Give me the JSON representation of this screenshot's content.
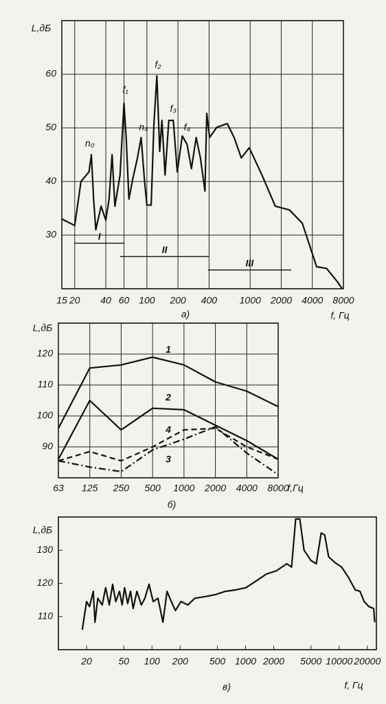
{
  "chart_data": [
    {
      "type": "line",
      "title": "а)",
      "xlabel": "f, Гц",
      "ylabel": "L,дБ",
      "xscale": "log",
      "xlim": [
        15,
        8000
      ],
      "ylim": [
        20,
        70
      ],
      "xticks": [
        15,
        20,
        40,
        60,
        100,
        200,
        400,
        1000,
        2000,
        4000,
        8000
      ],
      "yticks": [
        30,
        40,
        50,
        60
      ],
      "grid": true,
      "series": [
        {
          "color": "#111111",
          "dash": "solid",
          "x": [
            15,
            20,
            23,
            27.5,
            29,
            30.5,
            32,
            36,
            40,
            43,
            46,
            49,
            55,
            60,
            63,
            67,
            73,
            81,
            88,
            95,
            100,
            110,
            117,
            125,
            133,
            140,
            150,
            163,
            180,
            197,
            220,
            245,
            270,
            300,
            330,
            365,
            380,
            405,
            475,
            600,
            700,
            820,
            980,
            1300,
            1750,
            2400,
            3200,
            4400,
            5500,
            7000,
            7800
          ],
          "values": [
            33,
            31.8,
            40,
            41.8,
            45,
            36.7,
            31,
            35.4,
            32.8,
            36.7,
            45,
            35.4,
            41.2,
            54.6,
            48.2,
            36.7,
            40.5,
            44.4,
            48.2,
            40,
            35.6,
            35.6,
            50.8,
            59.7,
            45.6,
            51.4,
            41.2,
            51.4,
            51.4,
            41.8,
            48.5,
            46.9,
            42.4,
            48.2,
            44.4,
            38.2,
            52.7,
            48.2,
            50.1,
            50.8,
            48.2,
            44.4,
            46.3,
            41.2,
            35.4,
            34.7,
            32.2,
            24.1,
            23.8,
            21.3,
            20
          ]
        },
        {
          "name": "I",
          "color": "#111111",
          "dash": "solid",
          "x": [
            20,
            60
          ],
          "values": [
            28.5,
            28.5
          ]
        },
        {
          "name": "II",
          "color": "#111111",
          "dash": "solid",
          "x": [
            55,
            400
          ],
          "values": [
            26,
            26
          ]
        },
        {
          "name": "III",
          "color": "#111111",
          "dash": "solid",
          "x": [
            390,
            2500
          ],
          "values": [
            23.5,
            23.5
          ]
        }
      ],
      "annotations": [
        {
          "text": "n₀",
          "x": 28,
          "y": 47
        },
        {
          "text": "f₁",
          "x": 62,
          "y": 57
        },
        {
          "text": "f₂",
          "x": 128,
          "y": 61.7
        },
        {
          "text": "f₃",
          "x": 180,
          "y": 53.5
        },
        {
          "text": "f₄",
          "x": 245,
          "y": 50
        },
        {
          "text": "n₄",
          "x": 93,
          "y": 50
        }
      ]
    },
    {
      "type": "line",
      "title": "б)",
      "xlabel": "f,Гц",
      "ylabel": "L,дБ",
      "categories": [
        "63",
        "125",
        "250",
        "500",
        "1000",
        "2000",
        "4000",
        "8000"
      ],
      "ylim": [
        80,
        130
      ],
      "yticks": [
        90,
        100,
        110,
        120
      ],
      "grid": true,
      "series": [
        {
          "name": "1",
          "color": "#111111",
          "dash": "solid",
          "values": [
            96,
            115.5,
            116.5,
            119,
            116.5,
            111,
            108,
            103
          ]
        },
        {
          "name": "2",
          "color": "#111111",
          "dash": "solid",
          "values": [
            86,
            105,
            95.5,
            102.5,
            102,
            97,
            92,
            86
          ]
        },
        {
          "name": "3",
          "color": "#111111",
          "dash": "dashdot",
          "values": [
            85.5,
            83.5,
            82,
            89,
            92.5,
            96.5,
            88,
            81
          ]
        },
        {
          "name": "4",
          "color": "#111111",
          "dash": "dashed",
          "values": [
            85.5,
            88.5,
            85.5,
            90,
            95.5,
            96,
            90,
            86
          ]
        }
      ]
    },
    {
      "type": "line",
      "title": "в)",
      "xlabel": "f, Гц",
      "ylabel": "L,дБ",
      "xscale": "log",
      "xlim": [
        10,
        25000
      ],
      "ylim": [
        100,
        140
      ],
      "xticks": [
        20,
        50,
        100,
        200,
        500,
        1000,
        2000,
        5000,
        10000,
        20000
      ],
      "yticks": [
        110,
        120,
        130
      ],
      "grid": false,
      "series": [
        {
          "color": "#111111",
          "dash": "solid",
          "x": [
            18,
            20,
            21.5,
            23.6,
            24.6,
            26.4,
            29.4,
            32,
            35,
            38,
            41,
            45,
            48,
            51,
            55,
            59,
            63,
            69,
            77,
            84,
            93,
            103,
            116,
            131,
            145,
            161,
            178,
            204,
            242,
            287,
            369,
            474,
            610,
            784,
            1008,
            1296,
            1667,
            2143,
            2755,
            3100,
            3430,
            3800,
            4220,
            4990,
            5700,
            6420,
            7000,
            7730,
            8990,
            10630,
            12570,
            14870,
            16700,
            18500,
            20800,
            23400,
            24000
          ],
          "values": [
            106,
            114.5,
            113,
            117.6,
            108.3,
            115.5,
            113.5,
            118.7,
            113.5,
            119.7,
            114.5,
            117.6,
            113.5,
            118.7,
            113.9,
            117.6,
            112.4,
            117.6,
            113.5,
            115.5,
            119.7,
            114.5,
            115.5,
            108.3,
            117.6,
            114.5,
            111.8,
            114.5,
            113.5,
            115.5,
            116,
            116.6,
            117.6,
            118,
            118.7,
            120.7,
            122.8,
            123.8,
            125.9,
            124.9,
            139.4,
            139.4,
            130,
            126.9,
            125.9,
            135.2,
            134.6,
            128,
            126.3,
            124.9,
            121.8,
            118,
            117.6,
            114.5,
            113,
            112.4,
            108.3
          ]
        }
      ]
    }
  ]
}
